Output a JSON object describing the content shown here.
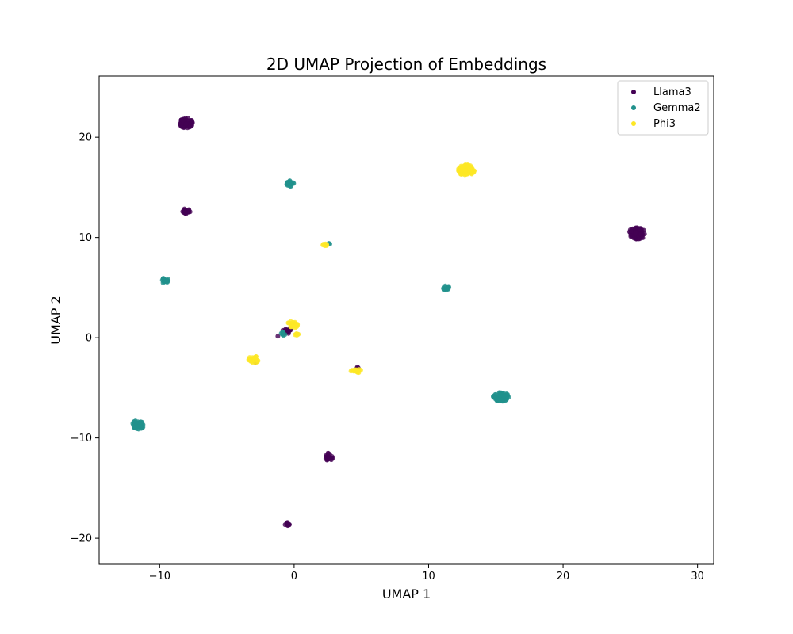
{
  "chart_data": {
    "type": "scatter",
    "title": "2D UMAP Projection of Embeddings",
    "xlabel": "UMAP 1",
    "ylabel": "UMAP 2",
    "xlim": [
      -14.5,
      31.2
    ],
    "ylim": [
      -22.6,
      26.1
    ],
    "xticks": [
      -10,
      0,
      10,
      20,
      30
    ],
    "yticks": [
      -20,
      -10,
      0,
      10,
      20
    ],
    "xtick_labels": [
      "−10",
      "0",
      "10",
      "20",
      "30"
    ],
    "ytick_labels": [
      "−20",
      "−10",
      "0",
      "10",
      "20"
    ],
    "grid": false,
    "legend": "top-right",
    "series": [
      {
        "name": "Llama3",
        "color": "#440154",
        "clusters": [
          {
            "x": -8.0,
            "y": 21.4,
            "rx": 0.5,
            "ry": 0.55,
            "n": 60
          },
          {
            "x": -8.0,
            "y": 12.6,
            "rx": 0.3,
            "ry": 0.3,
            "n": 20
          },
          {
            "x": 25.5,
            "y": 10.4,
            "rx": 0.65,
            "ry": 0.6,
            "n": 80
          },
          {
            "x": 2.6,
            "y": -11.9,
            "rx": 0.3,
            "ry": 0.4,
            "n": 20
          },
          {
            "x": -0.5,
            "y": -18.6,
            "rx": 0.2,
            "ry": 0.2,
            "n": 12
          },
          {
            "x": -0.6,
            "y": 0.6,
            "rx": 0.3,
            "ry": 0.3,
            "n": 12
          },
          {
            "x": -1.2,
            "y": 0.2,
            "rx": 0.05,
            "ry": 0.05,
            "n": 1
          },
          {
            "x": -0.4,
            "y": 0.8,
            "rx": 0.2,
            "ry": 0.15,
            "n": 6
          },
          {
            "x": 4.7,
            "y": -3.0,
            "rx": 0.1,
            "ry": 0.1,
            "n": 3
          },
          {
            "x": -2.8,
            "y": -2.4,
            "rx": 0.1,
            "ry": 0.1,
            "n": 2
          }
        ]
      },
      {
        "name": "Gemma2",
        "color": "#21918c",
        "clusters": [
          {
            "x": -0.3,
            "y": 15.4,
            "rx": 0.3,
            "ry": 0.3,
            "n": 20
          },
          {
            "x": -9.6,
            "y": 5.7,
            "rx": 0.35,
            "ry": 0.25,
            "n": 20
          },
          {
            "x": 11.3,
            "y": 5.0,
            "rx": 0.25,
            "ry": 0.25,
            "n": 12
          },
          {
            "x": 15.4,
            "y": -5.9,
            "rx": 0.6,
            "ry": 0.45,
            "n": 60
          },
          {
            "x": -11.6,
            "y": -8.7,
            "rx": 0.45,
            "ry": 0.45,
            "n": 40
          },
          {
            "x": -0.8,
            "y": 0.4,
            "rx": 0.2,
            "ry": 0.2,
            "n": 8
          },
          {
            "x": 2.6,
            "y": 9.4,
            "rx": 0.08,
            "ry": 0.08,
            "n": 2
          }
        ]
      },
      {
        "name": "Phi3",
        "color": "#fde725",
        "clusters": [
          {
            "x": 12.8,
            "y": 16.7,
            "rx": 0.6,
            "ry": 0.55,
            "n": 80
          },
          {
            "x": 2.3,
            "y": 9.3,
            "rx": 0.2,
            "ry": 0.15,
            "n": 8
          },
          {
            "x": -0.1,
            "y": 1.3,
            "rx": 0.4,
            "ry": 0.4,
            "n": 25
          },
          {
            "x": 0.2,
            "y": 0.3,
            "rx": 0.15,
            "ry": 0.12,
            "n": 6
          },
          {
            "x": -3.0,
            "y": -2.2,
            "rx": 0.4,
            "ry": 0.35,
            "n": 30
          },
          {
            "x": 4.6,
            "y": -3.3,
            "rx": 0.45,
            "ry": 0.2,
            "n": 20
          }
        ]
      }
    ]
  }
}
